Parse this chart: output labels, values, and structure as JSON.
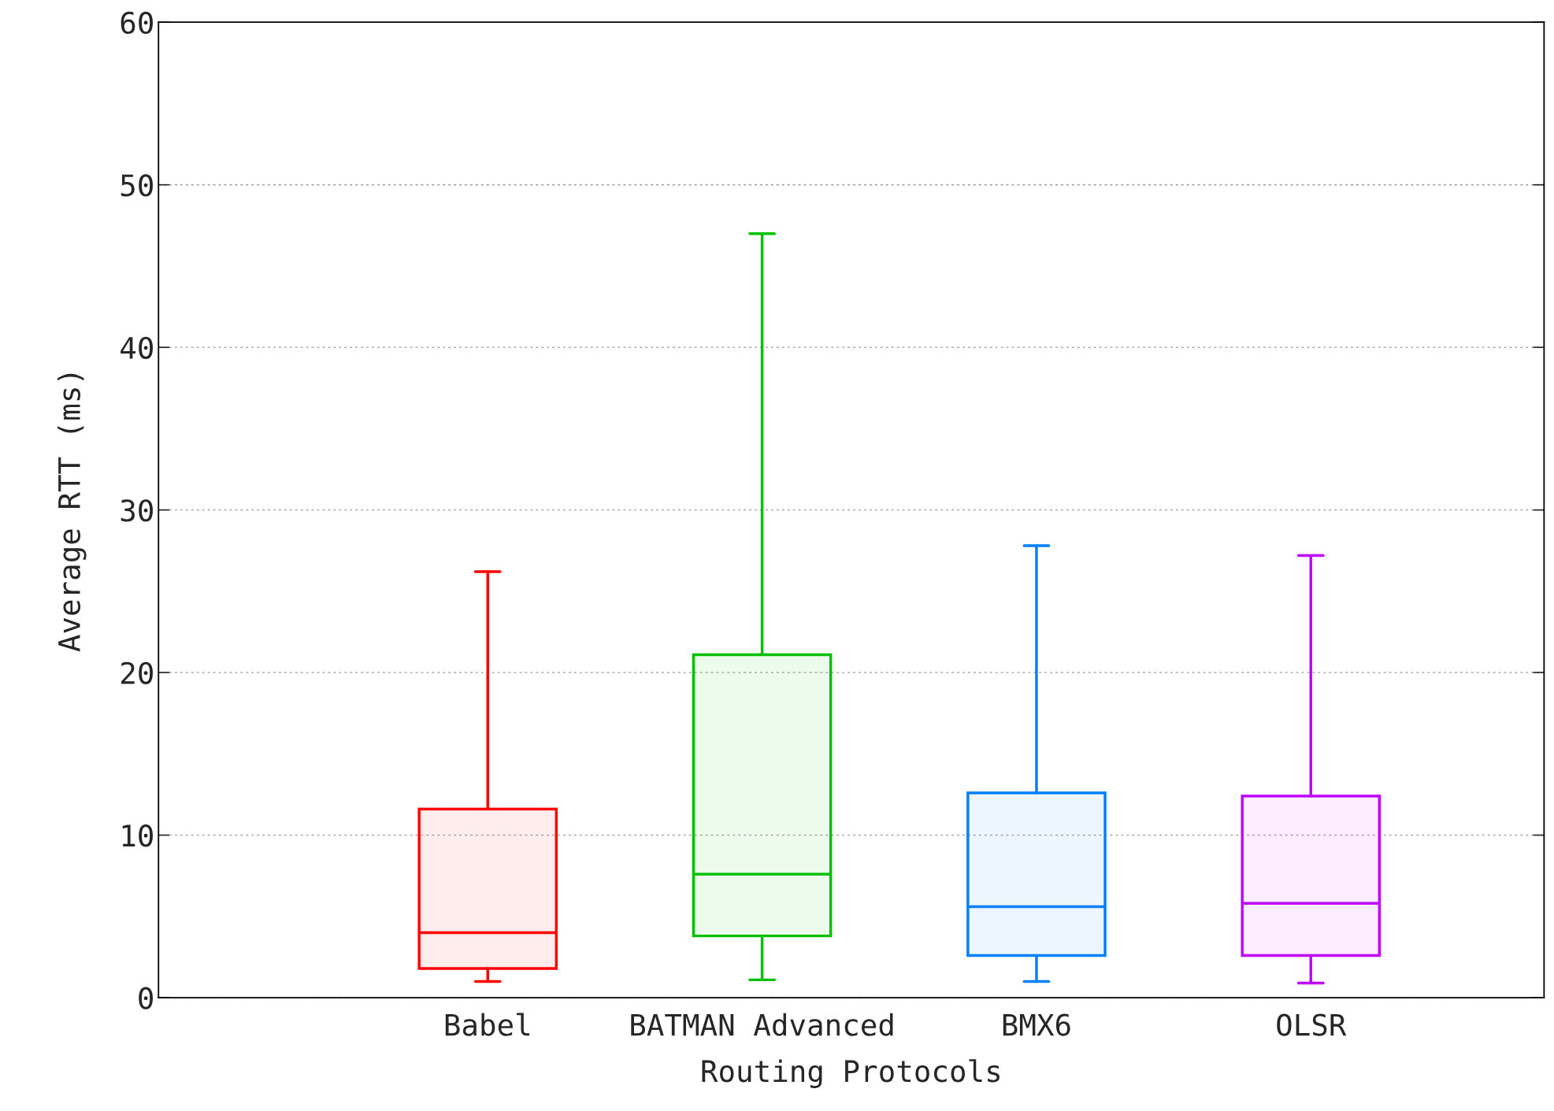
{
  "chart_data": {
    "type": "box",
    "xlabel": "Routing Protocols",
    "ylabel": "Average RTT (ms)",
    "categories": [
      "Babel",
      "BATMAN Advanced",
      "BMX6",
      "OLSR"
    ],
    "colors": [
      "#ff0000",
      "#00c000",
      "#0080ff",
      "#c000ff"
    ],
    "boxes": [
      {
        "low": 1.0,
        "q1": 1.8,
        "median": 4.0,
        "q3": 11.6,
        "high": 26.2
      },
      {
        "low": 1.1,
        "q1": 3.8,
        "median": 7.6,
        "q3": 21.1,
        "high": 47.0
      },
      {
        "low": 1.0,
        "q1": 2.6,
        "median": 5.6,
        "q3": 12.6,
        "high": 27.8
      },
      {
        "low": 0.9,
        "q1": 2.6,
        "median": 5.8,
        "q3": 12.4,
        "high": 27.2
      }
    ],
    "ylim": [
      0,
      60
    ],
    "yticks": [
      0,
      10,
      20,
      30,
      40,
      50,
      60
    ],
    "grid": "y"
  }
}
